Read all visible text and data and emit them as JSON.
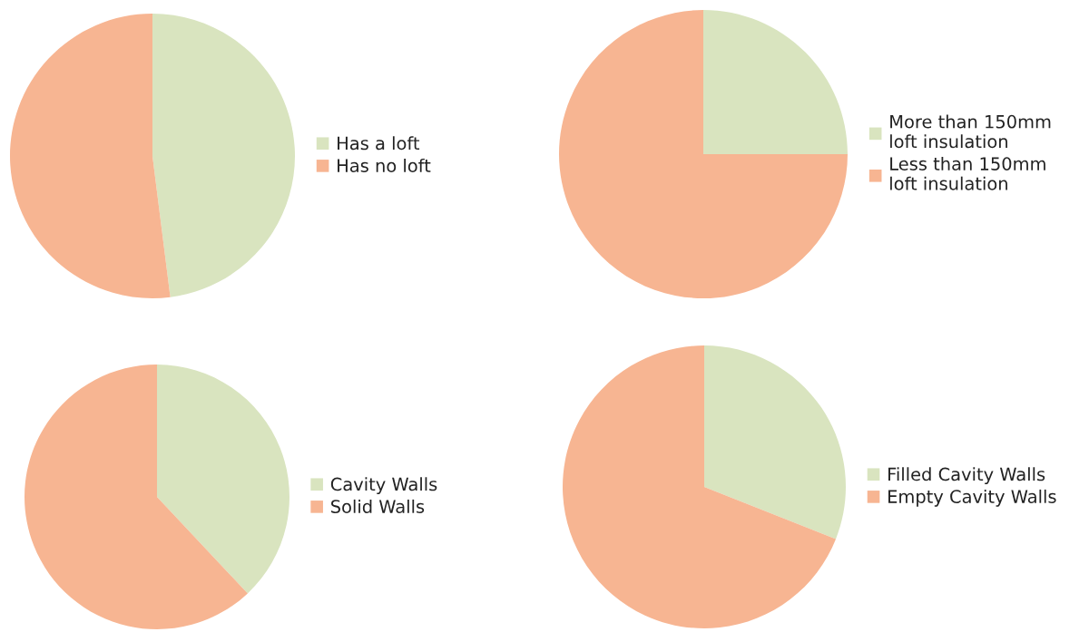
{
  "chart_data": [
    {
      "type": "pie",
      "categories": [
        "Has a loft",
        "Has no loft"
      ],
      "values": [
        48,
        52
      ],
      "colors": [
        "#d9e4bf",
        "#f7b592"
      ],
      "legend": "right"
    },
    {
      "type": "pie",
      "categories": [
        "More than 150mm loft insulation",
        "Less than 150mm loft insulation"
      ],
      "values": [
        25,
        75
      ],
      "colors": [
        "#d9e4bf",
        "#f7b592"
      ],
      "legend": "right"
    },
    {
      "type": "pie",
      "categories": [
        "Cavity Walls",
        "Solid Walls"
      ],
      "values": [
        38,
        62
      ],
      "colors": [
        "#d9e4bf",
        "#f7b592"
      ],
      "legend": "right"
    },
    {
      "type": "pie",
      "categories": [
        "Filled Cavity Walls",
        "Empty Cavity Walls"
      ],
      "values": [
        31,
        69
      ],
      "colors": [
        "#d9e4bf",
        "#f7b592"
      ],
      "legend": "right"
    }
  ]
}
